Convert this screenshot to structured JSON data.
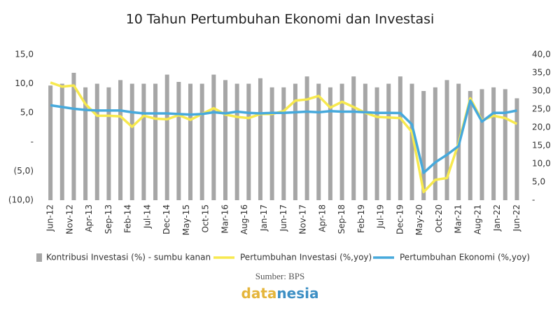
{
  "chart_data": {
    "type": "combo",
    "title": "10 Tahun Pertumbuhan Ekonomi dan Investasi",
    "xlim": [
      -2,
      121
    ],
    "xticks": [
      {
        "value": 0,
        "label": "Jun-12"
      },
      {
        "value": 5,
        "label": "Nov-12"
      },
      {
        "value": 10,
        "label": "Apr-13"
      },
      {
        "value": 15,
        "label": "Sep-13"
      },
      {
        "value": 20,
        "label": "Feb-14"
      },
      {
        "value": 25,
        "label": "Jul-14"
      },
      {
        "value": 30,
        "label": "Dec-14"
      },
      {
        "value": 35,
        "label": "May-15"
      },
      {
        "value": 40,
        "label": "Oct-15"
      },
      {
        "value": 45,
        "label": "Mar-16"
      },
      {
        "value": 50,
        "label": "Aug-16"
      },
      {
        "value": 55,
        "label": "Jan-17"
      },
      {
        "value": 60,
        "label": "Jun-17"
      },
      {
        "value": 65,
        "label": "Nov-17"
      },
      {
        "value": 70,
        "label": "Apr-18"
      },
      {
        "value": 75,
        "label": "Sep-18"
      },
      {
        "value": 80,
        "label": "Feb-19"
      },
      {
        "value": 85,
        "label": "Jul-19"
      },
      {
        "value": 90,
        "label": "Dec-19"
      },
      {
        "value": 95,
        "label": "May-20"
      },
      {
        "value": 100,
        "label": "Oct-20"
      },
      {
        "value": 105,
        "label": "Mar-21"
      },
      {
        "value": 110,
        "label": "Aug-21"
      },
      {
        "value": 115,
        "label": "Jan-22"
      },
      {
        "value": 120,
        "label": "Jun-22"
      }
    ],
    "ylim": [
      -10,
      15
    ],
    "yticks": [
      {
        "value": 15,
        "label": "15,0"
      },
      {
        "value": 10,
        "label": "10,0"
      },
      {
        "value": 5,
        "label": "5,0"
      },
      {
        "value": 0,
        "label": "-"
      },
      {
        "value": -5,
        "label": "(5,0)"
      },
      {
        "value": -10,
        "label": "(10,0)"
      }
    ],
    "y2lim": [
      0,
      40
    ],
    "y2ticks": [
      {
        "value": 40,
        "label": "40,0"
      },
      {
        "value": 35,
        "label": "35,0"
      },
      {
        "value": 30,
        "label": "30,0"
      },
      {
        "value": 25,
        "label": "25,0"
      },
      {
        "value": 20,
        "label": "20,0"
      },
      {
        "value": 15,
        "label": "15,0"
      },
      {
        "value": 10,
        "label": "10,0"
      },
      {
        "value": 5,
        "label": "5,0"
      },
      {
        "value": 0,
        "label": "-"
      }
    ],
    "x": [
      0,
      3,
      6,
      9,
      12,
      15,
      18,
      21,
      24,
      27,
      30,
      33,
      36,
      39,
      42,
      45,
      48,
      51,
      54,
      57,
      60,
      63,
      66,
      69,
      72,
      75,
      78,
      81,
      84,
      87,
      90,
      93,
      96,
      99,
      102,
      105,
      108,
      111,
      114,
      117,
      120
    ],
    "series": [
      {
        "name": "Kontribusi Investasi (%) - sumbu kanan",
        "type": "bar",
        "axis": "y2",
        "color": "#a6a6a6",
        "values": [
          31.5,
          32,
          35,
          31,
          32,
          31,
          33,
          32,
          32,
          32,
          34.5,
          32.5,
          32,
          32,
          34.5,
          33,
          32,
          32,
          33.5,
          31,
          31,
          32,
          34,
          32,
          31,
          32,
          34,
          32,
          31,
          32,
          34,
          32,
          30,
          31,
          33,
          32,
          30,
          30.5,
          31,
          30.5,
          28
        ]
      },
      {
        "name": "Pertumbuhan Investasi (%,yoy)",
        "type": "line",
        "axis": "y",
        "color": "#f7e94e",
        "values": [
          10.2,
          9.5,
          9.7,
          6.5,
          4.5,
          4.5,
          4.4,
          2.6,
          4.5,
          4.0,
          3.9,
          4.6,
          3.8,
          4.8,
          5.8,
          4.7,
          4.3,
          4.1,
          4.8,
          4.8,
          5.3,
          7.1,
          7.3,
          7.9,
          5.9,
          6.9,
          6.0,
          5.0,
          4.3,
          4.2,
          4.1,
          1.7,
          -8.6,
          -6.5,
          -6.2,
          -0.2,
          7.5,
          3.7,
          4.5,
          4.1,
          3.1
        ]
      },
      {
        "name": "Pertumbuhan Ekonomi (%,yoy)",
        "type": "line",
        "axis": "y",
        "color": "#46a9dc",
        "values": [
          6.3,
          6.0,
          5.7,
          5.5,
          5.4,
          5.4,
          5.4,
          5.1,
          4.9,
          4.9,
          4.9,
          4.8,
          4.7,
          4.8,
          5.1,
          4.9,
          5.2,
          5.0,
          4.9,
          5.0,
          5.0,
          5.1,
          5.2,
          5.1,
          5.3,
          5.2,
          5.2,
          5.1,
          5.0,
          5.0,
          4.97,
          3.0,
          -5.3,
          -3.5,
          -2.2,
          -0.7,
          7.1,
          3.5,
          5.0,
          5.0,
          5.4
        ]
      }
    ]
  },
  "footer": {
    "source": "Sumber: BPS",
    "logo": [
      "data",
      "nesia"
    ]
  }
}
